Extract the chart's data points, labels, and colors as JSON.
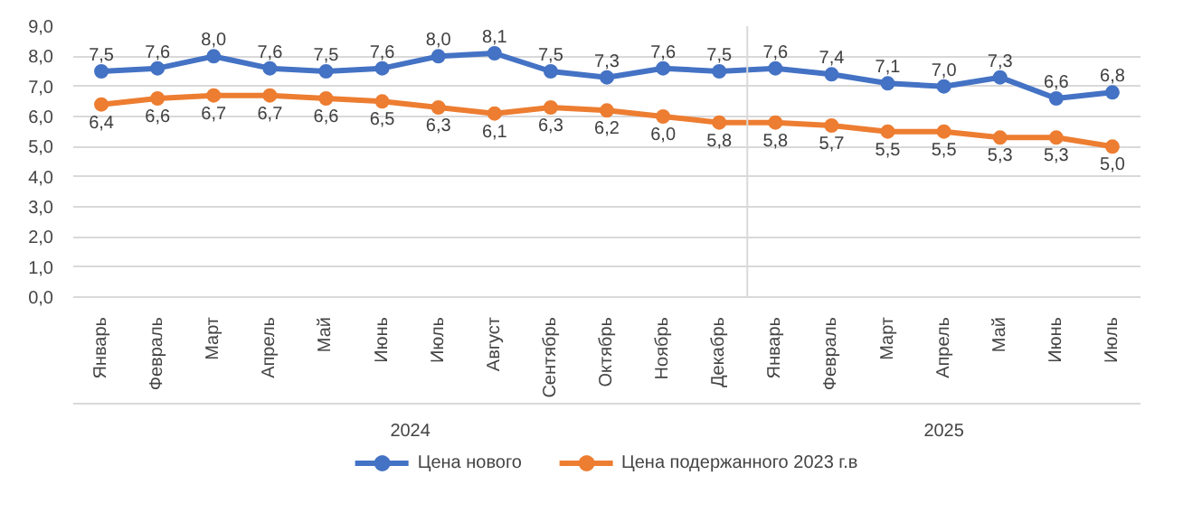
{
  "chart_data": {
    "type": "line",
    "categories": [
      "Январь",
      "Февраль",
      "Март",
      "Апрель",
      "Май",
      "Июнь",
      "Июль",
      "Август",
      "Сентябрь",
      "Октябрь",
      "Ноябрь",
      "Декабрь",
      "Январь",
      "Февраль",
      "Март",
      "Апрель",
      "Май",
      "Июнь",
      "Июль"
    ],
    "series": [
      {
        "name": "Цена нового",
        "color": "#4472c4",
        "values": [
          7.5,
          7.6,
          8.0,
          7.6,
          7.5,
          7.6,
          8.0,
          8.1,
          7.5,
          7.3,
          7.6,
          7.5,
          7.6,
          7.4,
          7.1,
          7.0,
          7.3,
          6.6,
          6.8
        ],
        "value_labels": [
          "7,5",
          "7,6",
          "8,0",
          "7,6",
          "7,5",
          "7,6",
          "8,0",
          "8,1",
          "7,5",
          "7,3",
          "7,6",
          "7,5",
          "7,6",
          "7,4",
          "7,1",
          "7,0",
          "7,3",
          "6,6",
          "6,8"
        ]
      },
      {
        "name": "Цена подержанного 2023 г.в",
        "color": "#ed7d31",
        "values": [
          6.4,
          6.6,
          6.7,
          6.7,
          6.6,
          6.5,
          6.3,
          6.1,
          6.3,
          6.2,
          6.0,
          5.8,
          5.8,
          5.7,
          5.5,
          5.5,
          5.3,
          5.3,
          5.0
        ],
        "value_labels": [
          "6,4",
          "6,6",
          "6,7",
          "6,7",
          "6,6",
          "6,5",
          "6,3",
          "6,1",
          "6,3",
          "6,2",
          "6,0",
          "5,8",
          "5,8",
          "5,7",
          "5,5",
          "5,5",
          "5,3",
          "5,3",
          "5,0"
        ]
      }
    ],
    "annotations": [
      "2024",
      "2025"
    ],
    "ylim": [
      0,
      9
    ],
    "yticks": [
      {
        "value": 0,
        "label": "0,0"
      },
      {
        "value": 1,
        "label": "1,0"
      },
      {
        "value": 2,
        "label": "2,0"
      },
      {
        "value": 3,
        "label": "3,0"
      },
      {
        "value": 4,
        "label": "4,0"
      },
      {
        "value": 5,
        "label": "5,0"
      },
      {
        "value": 6,
        "label": "6,0"
      },
      {
        "value": 7,
        "label": "7,0"
      },
      {
        "value": 8,
        "label": "8,0"
      },
      {
        "value": 9,
        "label": "9,0"
      }
    ],
    "grid": "y",
    "legend": "bottom",
    "marker": "circle",
    "line_style": "solid"
  }
}
